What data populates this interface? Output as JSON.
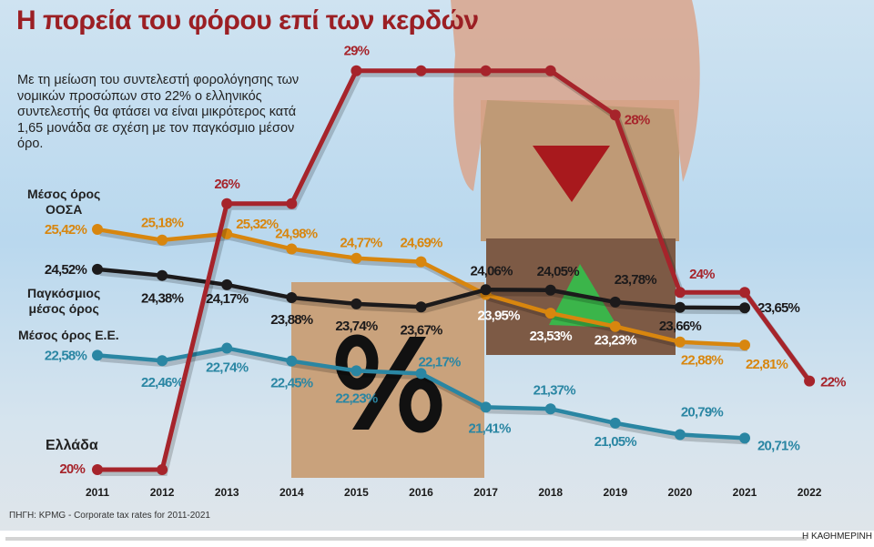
{
  "title": "Η πορεία του φόρου επί των κερδών",
  "subtitle": "Με τη μείωση του συντελεστή φορολόγησης των νομικών προσώπων στο 22% ο ελληνικός συντελεστής θα φτάσει να είναι μικρότερος κατά 1,65 μονάδα σε σχέση με τον παγκόσμιο μέσον όρο.",
  "source": "ΠΗΓΗ: KPMG - Corporate tax rates for 2011-2021",
  "brand": "Η ΚΑΘΗΜΕΡΙΝΗ",
  "chart_data": {
    "type": "line",
    "title": "Η πορεία του φόρου επί των κερδών",
    "xlabel": "",
    "ylabel": "",
    "unit": "%",
    "ylim": [
      20,
      29
    ],
    "grid": false,
    "categories": [
      "2011",
      "2012",
      "2013",
      "2014",
      "2015",
      "2016",
      "2017",
      "2018",
      "2019",
      "2020",
      "2021",
      "2022"
    ],
    "series": [
      {
        "name": "Ελλάδα",
        "color": "#a6242b",
        "values": [
          20,
          20,
          26,
          26,
          29,
          29,
          29,
          29,
          28,
          24,
          24,
          22
        ],
        "labels": [
          "20%",
          "",
          "26%",
          "",
          "29%",
          "",
          "",
          "",
          "28%",
          "24%",
          "",
          "22%"
        ]
      },
      {
        "name": "Μέσος όρος ΟΟΣΑ",
        "color": "#d8860e",
        "values": [
          25.42,
          25.18,
          25.32,
          24.98,
          24.77,
          24.69,
          23.95,
          23.53,
          23.23,
          22.88,
          22.81,
          null
        ],
        "labels": [
          "25,42%",
          "25,18%",
          "25,32%",
          "24,98%",
          "24,77%",
          "24,69%",
          "23,95%",
          "23,53%",
          "23,23%",
          "22,88%",
          "22,81%",
          ""
        ]
      },
      {
        "name": "Παγκόσμιος μέσος όρος",
        "color": "#1c1a1b",
        "values": [
          24.52,
          24.38,
          24.17,
          23.88,
          23.74,
          23.67,
          24.06,
          24.05,
          23.78,
          23.66,
          23.65,
          null
        ],
        "labels": [
          "24,52%",
          "24,38%",
          "24,17%",
          "23,88%",
          "23,74%",
          "23,67%",
          "24,06%",
          "24,05%",
          "23,78%",
          "23,66%",
          "23,65%",
          ""
        ]
      },
      {
        "name": "Μέσος όρος Ε.Ε.",
        "color": "#2a86a3",
        "values": [
          22.58,
          22.46,
          22.74,
          22.45,
          22.23,
          22.17,
          21.41,
          21.37,
          21.05,
          20.79,
          20.71,
          null
        ],
        "labels": [
          "22,58%",
          "22,46%",
          "22,74%",
          "22,45%",
          "22,23%",
          "22,17%",
          "21,41%",
          "21,37%",
          "21,05%",
          "20,79%",
          "20,71%",
          ""
        ]
      }
    ]
  },
  "series_labels": {
    "oecd": [
      "Μέσος όρος",
      "ΟΟΣΑ"
    ],
    "world": [
      "Παγκόσμιος",
      "μέσος όρος"
    ],
    "eu": "Μέσος όρος Ε.Ε.",
    "greece": "Ελλάδα"
  },
  "decor": {
    "percent_sign": "%",
    "wood": "#c9a27c",
    "wood_dark": "#7d5a45"
  }
}
